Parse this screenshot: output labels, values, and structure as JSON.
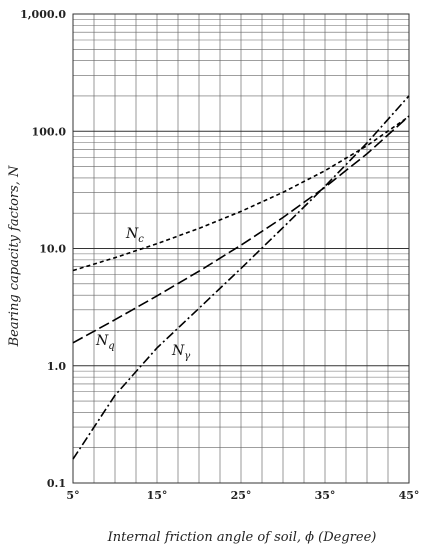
{
  "chart_data": {
    "type": "line",
    "xlabel": "Internal friction angle of soil, ϕ (Degree)",
    "ylabel": "Bearing capacity factors, N",
    "xlim": [
      5,
      45
    ],
    "ylim": [
      0.1,
      1000
    ],
    "y_scale": "log",
    "grid": true,
    "x_ticks": [
      "5°",
      "15°",
      "25°",
      "35°",
      "45°"
    ],
    "y_ticks": [
      "0.1",
      "1.0",
      "10.0",
      "100.0",
      "1,000.0"
    ],
    "x": [
      5,
      10,
      15,
      20,
      25,
      30,
      35,
      40,
      45
    ],
    "series": [
      {
        "name": "Nc",
        "label_main": "N",
        "label_sub": "c",
        "dash": "short",
        "values": [
          6.49,
          8.35,
          10.98,
          14.83,
          20.72,
          30.14,
          46.12,
          75.31,
          133.88
        ]
      },
      {
        "name": "Nq",
        "label_main": "N",
        "label_sub": "q",
        "dash": "long",
        "values": [
          1.57,
          2.47,
          3.94,
          6.4,
          10.66,
          18.4,
          33.3,
          64.2,
          134.88
        ]
      },
      {
        "name": "Nγ",
        "label_main": "N",
        "label_sub": "γ",
        "dash": "dashdot",
        "values": [
          0.16,
          0.56,
          1.42,
          3.09,
          6.76,
          15.07,
          33.92,
          79.54,
          200.8
        ]
      }
    ]
  }
}
